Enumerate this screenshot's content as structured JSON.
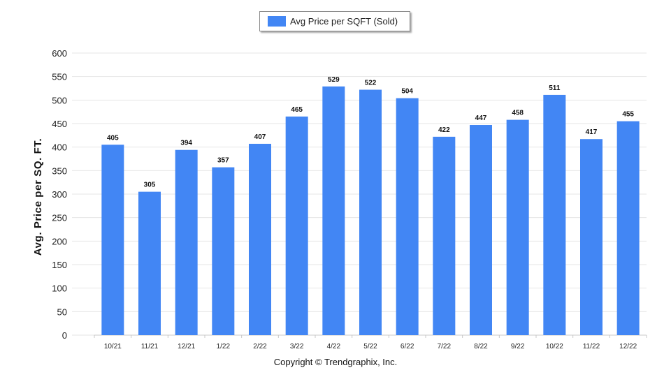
{
  "chart_data": {
    "type": "bar",
    "categories": [
      "10/21",
      "11/21",
      "12/21",
      "1/22",
      "2/22",
      "3/22",
      "4/22",
      "5/22",
      "6/22",
      "7/22",
      "8/22",
      "9/22",
      "10/22",
      "11/22",
      "12/22"
    ],
    "series": [
      {
        "name": "Avg Price per SQFT (Sold)",
        "values": [
          405,
          305,
          394,
          357,
          407,
          465,
          529,
          522,
          504,
          422,
          447,
          458,
          511,
          417,
          455
        ],
        "color": "#4286f4"
      }
    ],
    "ylabel": "Avg. Price per SQ. FT.",
    "xlabel": "",
    "ylim": [
      0,
      600
    ],
    "yticks": [
      0,
      50,
      100,
      150,
      200,
      250,
      300,
      350,
      400,
      450,
      500,
      550,
      600
    ],
    "grid": true,
    "legend": "top-center",
    "data_labels": true
  },
  "copyright": "Copyright © Trendgraphix, Inc."
}
